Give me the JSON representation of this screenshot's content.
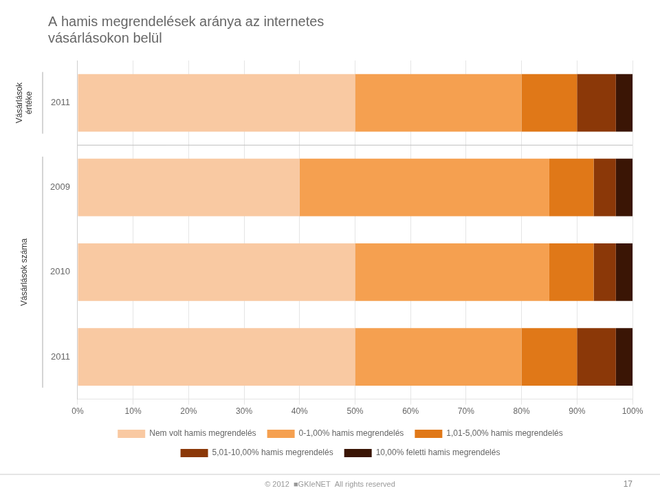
{
  "chart_data": {
    "type": "bar",
    "orientation": "horizontal",
    "stacked": true,
    "title": [
      "A hamis megrendelések aránya az internetes",
      "vásárlásokon belül"
    ],
    "categories": [
      "2011",
      "2009",
      "2010",
      "2011"
    ],
    "series": [
      {
        "name": "Nem volt hamis megrendelés",
        "color": "#F9C9A2",
        "values": [
          50,
          40,
          50,
          50
        ]
      },
      {
        "name": "0-1,00% hamis megrendelés",
        "color": "#F5A050",
        "values": [
          30,
          45,
          35,
          30
        ]
      },
      {
        "name": "1,01-5,00% hamis megrendelés",
        "color": "#E07818",
        "values": [
          10,
          8,
          8,
          10
        ]
      },
      {
        "name": "5,01-10,00% hamis megrendelés",
        "color": "#8B3808",
        "values": [
          7,
          4,
          4,
          7
        ]
      },
      {
        "name": "10,00% feletti hamis megrendelés",
        "color": "#3A1505",
        "values": [
          3,
          3,
          3,
          3
        ]
      }
    ],
    "xlim": [
      0,
      100
    ],
    "xticks": [
      {
        "value": 0,
        "label": "0%"
      },
      {
        "value": 10,
        "label": "10%"
      },
      {
        "value": 20,
        "label": "20%"
      },
      {
        "value": 30,
        "label": "30%"
      },
      {
        "value": 40,
        "label": "40%"
      },
      {
        "value": 50,
        "label": "50%"
      },
      {
        "value": 60,
        "label": "60%"
      },
      {
        "value": 70,
        "label": "70%"
      },
      {
        "value": 80,
        "label": "80%"
      },
      {
        "value": 90,
        "label": "90%"
      },
      {
        "value": 100,
        "label": "100%"
      }
    ],
    "grid": true,
    "legend": "bottom",
    "annotations": [
      {
        "text": "Vásárlások\nértéke",
        "rows": [
          0
        ]
      },
      {
        "text": "Vásárlások száma",
        "rows": [
          1,
          2,
          3
        ]
      },
      {
        "text": "© 2012  ■GKIeNET  All rights reserved"
      },
      {
        "text": "17"
      }
    ]
  }
}
